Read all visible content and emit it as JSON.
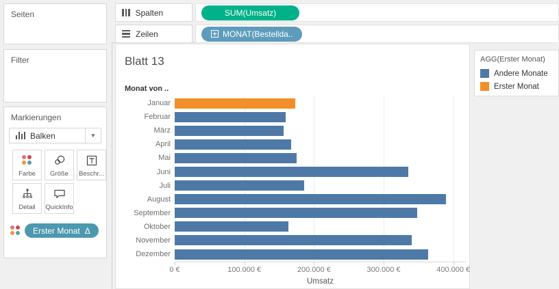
{
  "shelves": {
    "columns": {
      "label": "Spalten",
      "pill": "SUM(Umsatz)",
      "pill_color": "#00B18A"
    },
    "rows": {
      "label": "Zeilen",
      "pill": "MONAT(Bestellda..",
      "pill_color": "#5E9CBC"
    }
  },
  "sidebar": {
    "pages": {
      "title": "Seiten"
    },
    "filter": {
      "title": "Filter"
    },
    "marks": {
      "title": "Markierungen",
      "type_selector": "Balken",
      "buttons": [
        {
          "label": "Farbe"
        },
        {
          "label": "Größe"
        },
        {
          "label": "Beschr..."
        },
        {
          "label": "Detail"
        },
        {
          "label": "QuickInfo"
        }
      ],
      "pill": {
        "label": "Erster Monat",
        "delta": "Δ",
        "color": "#4D98AE"
      }
    }
  },
  "sheet": {
    "title": "Blatt 13",
    "row_header": "Monat von .."
  },
  "legend": {
    "title": "AGG(Erster Monat)",
    "items": [
      {
        "label": "Andere Monate",
        "color": "#4E79A7"
      },
      {
        "label": "Erster Monat",
        "color": "#F28E2B"
      }
    ]
  },
  "chart_data": {
    "type": "bar",
    "orientation": "horizontal",
    "title": "Blatt 13",
    "categories": [
      "Januar",
      "Februar",
      "März",
      "April",
      "Mai",
      "Juni",
      "Juli",
      "August",
      "September",
      "Oktober",
      "November",
      "Dezember"
    ],
    "values": [
      173000,
      159000,
      156000,
      167000,
      175000,
      335000,
      186000,
      389000,
      348000,
      163000,
      340000,
      364000
    ],
    "groups": [
      "Erster Monat",
      "Andere Monate",
      "Andere Monate",
      "Andere Monate",
      "Andere Monate",
      "Andere Monate",
      "Andere Monate",
      "Andere Monate",
      "Andere Monate",
      "Andere Monate",
      "Andere Monate",
      "Andere Monate"
    ],
    "colors": {
      "Andere Monate": "#4E79A7",
      "Erster Monat": "#F28E2B"
    },
    "xlabel": "Umsatz",
    "ylabel": "Monat von ..",
    "xlim": [
      0,
      418000
    ],
    "grid": "vertical",
    "legend_position": "right",
    "ticks": [
      {
        "value": 0,
        "label": "0 €"
      },
      {
        "value": 100000,
        "label": "100.000 €"
      },
      {
        "value": 200000,
        "label": "200.000 €"
      },
      {
        "value": 300000,
        "label": "300.000 €"
      },
      {
        "value": 400000,
        "label": "400.000 €"
      }
    ]
  }
}
